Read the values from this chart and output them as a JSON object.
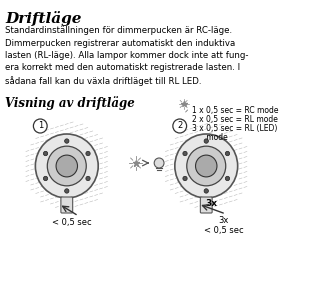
{
  "title": "Driftläge",
  "body_text": "Standardinställningen för dimmerpucken är RC-läge.\nDimmerpucken registrerar automatiskt den induktiva\nlasten (RL-läge). Alla lampor kommer dock inte att fung-\nera korrekt med den automatiskt registrerade lasten. I\nsådana fall kan du växla driftläget till RL LED.",
  "subtitle": "Visning av driftläge",
  "label1": "< 0,5 sec",
  "label2": "3x\n< 0,5 sec",
  "legend_lines": [
    "1 x 0,5 sec = RC mode",
    "2 x 0,5 sec = RL mode",
    "3 x 0,5 sec = RL (LED)",
    "      mode"
  ],
  "circle1_label": "1",
  "circle2_label": "2",
  "bg_color": "#ffffff",
  "text_color": "#000000",
  "line_color": "#333333"
}
